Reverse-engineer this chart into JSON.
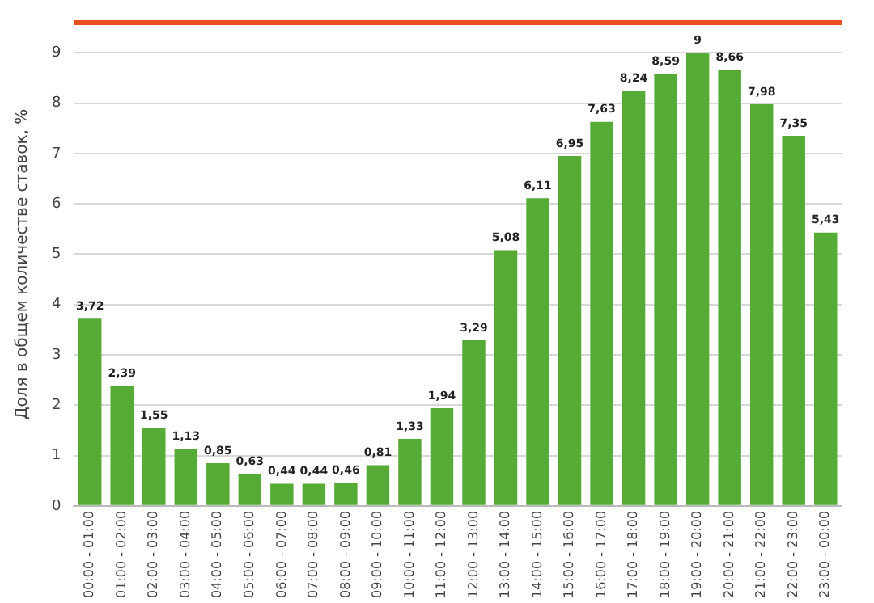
{
  "chart_data": {
    "type": "bar",
    "ylabel": "Доля в общем количестве ставок, %",
    "categories": [
      "00:00 - 01:00",
      "01:00 - 02:00",
      "02:00 - 03:00",
      "03:00 - 04:00",
      "04:00 - 05:00",
      "05:00 - 06:00",
      "06:00 - 07:00",
      "07:00 - 08:00",
      "08:00 - 09:00",
      "09:00 - 10:00",
      "10:00 - 11:00",
      "11:00 - 12:00",
      "12:00 - 13:00",
      "13:00 - 14:00",
      "14:00 - 15:00",
      "15:00 - 16:00",
      "16:00 - 17:00",
      "17:00 - 18:00",
      "18:00 - 19:00",
      "19:00 - 20:00",
      "20:00 - 21:00",
      "21:00 - 22:00",
      "22:00 - 23:00",
      "23:00 - 00:00"
    ],
    "values": [
      3.72,
      2.39,
      1.55,
      1.13,
      0.85,
      0.63,
      0.44,
      0.44,
      0.46,
      0.81,
      1.33,
      1.94,
      3.29,
      5.08,
      6.11,
      6.95,
      7.63,
      8.24,
      8.59,
      9,
      8.66,
      7.98,
      7.35,
      5.43
    ],
    "value_labels": [
      "3,72",
      "2,39",
      "1,55",
      "1,13",
      "0,85",
      "0,63",
      "0,44",
      "0,44",
      "0,46",
      "0,81",
      "1,33",
      "1,94",
      "3,29",
      "5,08",
      "6,11",
      "6,95",
      "7,63",
      "8,24",
      "8,59",
      "9",
      "8,66",
      "7,98",
      "7,35",
      "5,43"
    ],
    "color": "#55ab35",
    "ylim": [
      0,
      9.6
    ],
    "yticks": [
      0,
      1,
      2,
      3,
      4,
      5,
      6,
      7,
      8,
      9
    ],
    "grid": "y"
  }
}
